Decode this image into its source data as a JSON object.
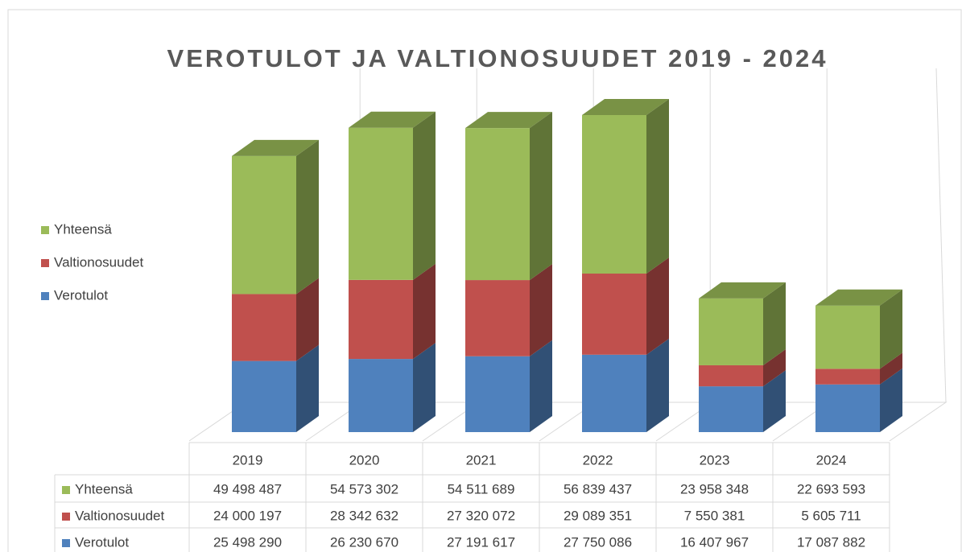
{
  "chart_data": {
    "type": "bar",
    "title": "VEROTULOT JA VALTIONOSUUDET 2019 - 2024",
    "categories": [
      "2019",
      "2020",
      "2021",
      "2022",
      "2023",
      "2024"
    ],
    "series": [
      {
        "name": "Yhteensä",
        "color": "#9bbb59",
        "values": [
          49498487,
          54573302,
          54511689,
          56839437,
          23958348,
          22693593
        ],
        "value_labels": [
          "49 498 487",
          "54 573 302",
          "54 511 689",
          "56 839 437",
          "23 958 348",
          "22 693 593"
        ]
      },
      {
        "name": "Valtionosuudet",
        "color": "#c0504d",
        "values": [
          24000197,
          28342632,
          27320072,
          29089351,
          7550381,
          5605711
        ],
        "value_labels": [
          "24 000 197",
          "28 342 632",
          "27 320 072",
          "29 089 351",
          "7 550 381",
          "5 605 711"
        ]
      },
      {
        "name": "Verotulot",
        "color": "#4f81bd",
        "values": [
          25498290,
          26230670,
          27191617,
          27750086,
          16407967,
          17087882
        ],
        "value_labels": [
          "25 498 290",
          "26 230 670",
          "27 191 617",
          "27 750 086",
          "16 407 967",
          "17 087 882"
        ]
      }
    ]
  }
}
